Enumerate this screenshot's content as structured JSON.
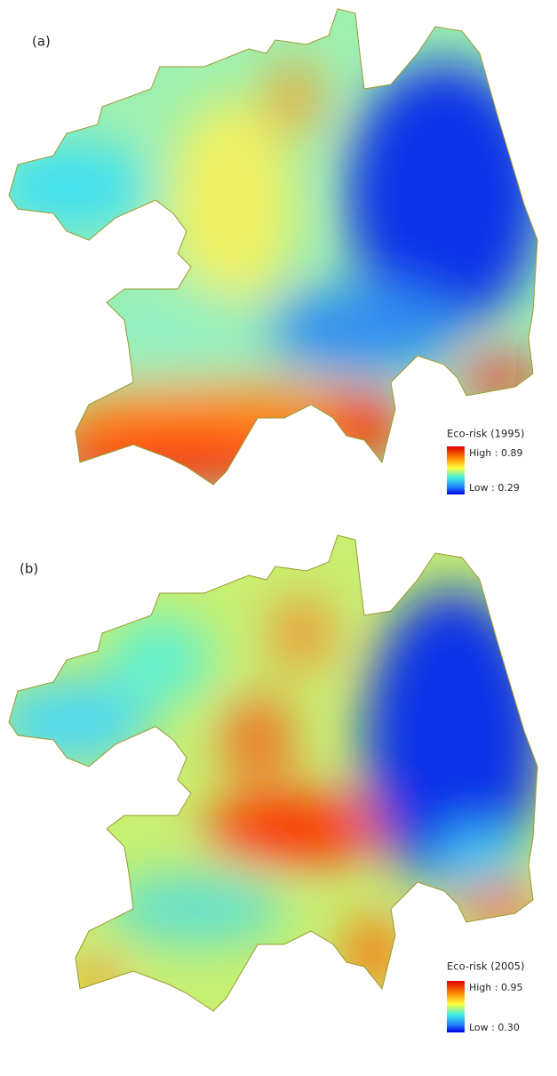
{
  "panels": [
    {
      "label": "(a)",
      "legend": {
        "title": "Eco-risk (1995)",
        "high": "High : 0.89",
        "low": "Low : 0.29"
      }
    },
    {
      "label": "(b)",
      "legend": {
        "title": "Eco-risk (2005)",
        "high": "High : 0.95",
        "low": "Low : 0.30"
      }
    }
  ]
}
